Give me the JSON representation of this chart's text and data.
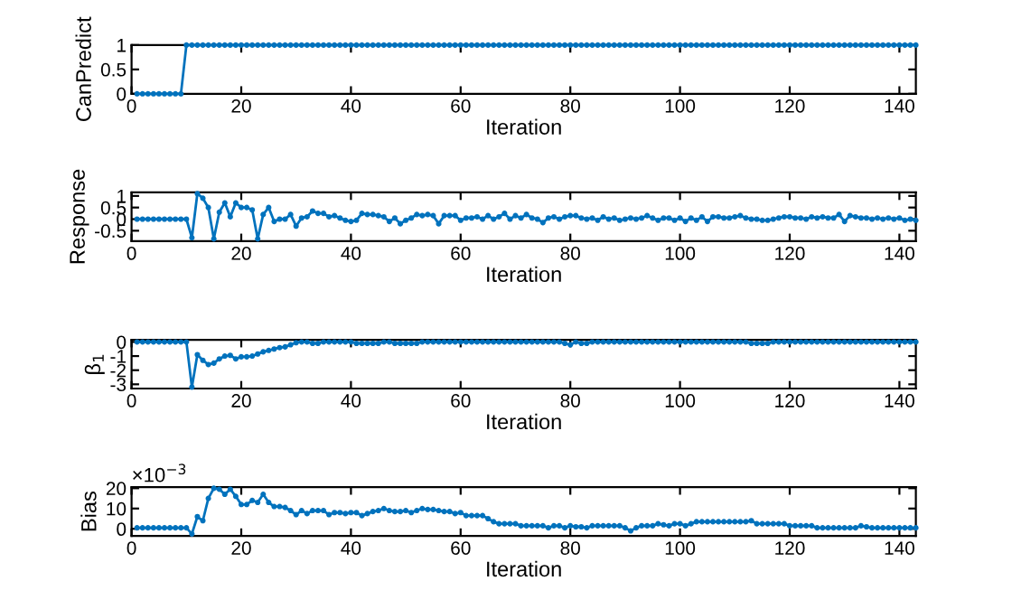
{
  "chart_data": [
    {
      "type": "line",
      "xlabel": "Iteration",
      "ylabel": "CanPredict",
      "xlim": [
        0,
        143
      ],
      "xticks": [
        0,
        20,
        40,
        60,
        80,
        100,
        120,
        140
      ],
      "ylim": [
        0,
        1
      ],
      "yticks": [
        0,
        0.5,
        1
      ],
      "marker": "circle",
      "x": [
        1,
        2,
        3,
        4,
        5,
        6,
        7,
        8,
        9,
        10,
        11,
        12,
        13,
        14,
        15,
        16,
        17,
        18,
        19,
        20,
        21,
        22,
        23,
        24,
        25,
        26,
        27,
        28,
        29,
        30,
        31,
        32,
        33,
        34,
        35,
        36,
        37,
        38,
        39,
        40,
        41,
        42,
        43,
        44,
        45,
        46,
        47,
        48,
        49,
        50,
        51,
        52,
        53,
        54,
        55,
        56,
        57,
        58,
        59,
        60,
        61,
        62,
        63,
        64,
        65,
        66,
        67,
        68,
        69,
        70,
        71,
        72,
        73,
        74,
        75,
        76,
        77,
        78,
        79,
        80,
        81,
        82,
        83,
        84,
        85,
        86,
        87,
        88,
        89,
        90,
        91,
        92,
        93,
        94,
        95,
        96,
        97,
        98,
        99,
        100,
        101,
        102,
        103,
        104,
        105,
        106,
        107,
        108,
        109,
        110,
        111,
        112,
        113,
        114,
        115,
        116,
        117,
        118,
        119,
        120,
        121,
        122,
        123,
        124,
        125,
        126,
        127,
        128,
        129,
        130,
        131,
        132,
        133,
        134,
        135,
        136,
        137,
        138,
        139,
        140,
        141,
        142,
        143
      ],
      "series": [
        {
          "color": "#0072bd",
          "values": [
            0,
            0,
            0,
            0,
            0,
            0,
            0,
            0,
            0,
            1,
            1,
            1,
            1,
            1,
            1,
            1,
            1,
            1,
            1,
            1,
            1,
            1,
            1,
            1,
            1,
            1,
            1,
            1,
            1,
            1,
            1,
            1,
            1,
            1,
            1,
            1,
            1,
            1,
            1,
            1,
            1,
            1,
            1,
            1,
            1,
            1,
            1,
            1,
            1,
            1,
            1,
            1,
            1,
            1,
            1,
            1,
            1,
            1,
            1,
            1,
            1,
            1,
            1,
            1,
            1,
            1,
            1,
            1,
            1,
            1,
            1,
            1,
            1,
            1,
            1,
            1,
            1,
            1,
            1,
            1,
            1,
            1,
            1,
            1,
            1,
            1,
            1,
            1,
            1,
            1,
            1,
            1,
            1,
            1,
            1,
            1,
            1,
            1,
            1,
            1,
            1,
            1,
            1,
            1,
            1,
            1,
            1,
            1,
            1,
            1,
            1,
            1,
            1,
            1,
            1,
            1,
            1,
            1,
            1,
            1,
            1,
            1,
            1,
            1,
            1,
            1,
            1,
            1,
            1,
            1,
            1,
            1,
            1,
            1,
            1,
            1,
            1,
            1,
            1,
            1,
            1,
            1,
            1
          ]
        }
      ]
    },
    {
      "type": "line",
      "xlabel": "Iteration",
      "ylabel": "Response",
      "xlim": [
        0,
        143
      ],
      "xticks": [
        0,
        20,
        40,
        60,
        80,
        100,
        120,
        140
      ],
      "ylim": [
        -0.95,
        1.15
      ],
      "yticks": [
        -0.5,
        0,
        0.5,
        1
      ],
      "marker": "circle",
      "x": [
        1,
        2,
        3,
        4,
        5,
        6,
        7,
        8,
        9,
        10,
        11,
        12,
        13,
        14,
        15,
        16,
        17,
        18,
        19,
        20,
        21,
        22,
        23,
        24,
        25,
        26,
        27,
        28,
        29,
        30,
        31,
        32,
        33,
        34,
        35,
        36,
        37,
        38,
        39,
        40,
        41,
        42,
        43,
        44,
        45,
        46,
        47,
        48,
        49,
        50,
        51,
        52,
        53,
        54,
        55,
        56,
        57,
        58,
        59,
        60,
        61,
        62,
        63,
        64,
        65,
        66,
        67,
        68,
        69,
        70,
        71,
        72,
        73,
        74,
        75,
        76,
        77,
        78,
        79,
        80,
        81,
        82,
        83,
        84,
        85,
        86,
        87,
        88,
        89,
        90,
        91,
        92,
        93,
        94,
        95,
        96,
        97,
        98,
        99,
        100,
        101,
        102,
        103,
        104,
        105,
        106,
        107,
        108,
        109,
        110,
        111,
        112,
        113,
        114,
        115,
        116,
        117,
        118,
        119,
        120,
        121,
        122,
        123,
        124,
        125,
        126,
        127,
        128,
        129,
        130,
        131,
        132,
        133,
        134,
        135,
        136,
        137,
        138,
        139,
        140,
        141,
        142,
        143
      ],
      "series": [
        {
          "color": "#0072bd",
          "values": [
            0,
            0,
            0,
            0,
            0,
            0,
            0,
            0,
            0,
            0,
            -0.8,
            1.1,
            0.9,
            0.5,
            -0.85,
            0.3,
            0.7,
            0.1,
            0.7,
            0.5,
            0.5,
            0.4,
            -0.85,
            0.2,
            0.5,
            -0.1,
            0,
            0,
            0.2,
            -0.3,
            0.05,
            0.1,
            0.35,
            0.25,
            0.25,
            0.1,
            0.15,
            0.05,
            -0.05,
            -0.1,
            -0.05,
            0.25,
            0.2,
            0.2,
            0.15,
            0.1,
            -0.1,
            0.05,
            -0.2,
            -0.05,
            0.05,
            0.2,
            0.15,
            0.2,
            0.15,
            -0.2,
            0.15,
            0.15,
            0.15,
            -0.05,
            0.05,
            0.05,
            0.1,
            0,
            0.15,
            0,
            0.1,
            0.25,
            0,
            0.15,
            0.05,
            0.2,
            0.05,
            0,
            -0.15,
            0.05,
            0.1,
            0,
            0.1,
            0.15,
            0.15,
            0.05,
            0,
            0.05,
            -0.05,
            0.1,
            0,
            0.05,
            -0.05,
            0,
            0.05,
            0,
            0.05,
            0.15,
            0.05,
            -0.05,
            0.05,
            0.05,
            -0.05,
            0.05,
            -0.1,
            0.05,
            -0.05,
            0.1,
            -0.1,
            0.1,
            0.1,
            0.05,
            0.05,
            0.1,
            0.15,
            0.05,
            0,
            0,
            -0.05,
            -0.05,
            0,
            0.05,
            0.1,
            0.1,
            0.05,
            0.05,
            0,
            0.1,
            0.05,
            0.1,
            0.05,
            0.05,
            0.2,
            -0.1,
            0.15,
            0.1,
            0.05,
            0.05,
            0,
            0.05,
            0,
            0.05,
            0,
            0.05,
            -0.05,
            0,
            -0.05
          ]
        }
      ]
    },
    {
      "type": "line",
      "xlabel": "Iteration",
      "ylabel": "β$_{1}$",
      "xlim": [
        0,
        143
      ],
      "xticks": [
        0,
        20,
        40,
        60,
        80,
        100,
        120,
        140
      ],
      "ylim": [
        -3.3,
        0.15
      ],
      "yticks": [
        -3,
        -2,
        -1,
        0
      ],
      "marker": "circle",
      "x": [
        1,
        2,
        3,
        4,
        5,
        6,
        7,
        8,
        9,
        10,
        11,
        12,
        13,
        14,
        15,
        16,
        17,
        18,
        19,
        20,
        21,
        22,
        23,
        24,
        25,
        26,
        27,
        28,
        29,
        30,
        31,
        32,
        33,
        34,
        35,
        36,
        37,
        38,
        39,
        40,
        41,
        42,
        43,
        44,
        45,
        46,
        47,
        48,
        49,
        50,
        51,
        52,
        53,
        54,
        55,
        56,
        57,
        58,
        59,
        60,
        61,
        62,
        63,
        64,
        65,
        66,
        67,
        68,
        69,
        70,
        71,
        72,
        73,
        74,
        75,
        76,
        77,
        78,
        79,
        80,
        81,
        82,
        83,
        84,
        85,
        86,
        87,
        88,
        89,
        90,
        91,
        92,
        93,
        94,
        95,
        96,
        97,
        98,
        99,
        100,
        101,
        102,
        103,
        104,
        105,
        106,
        107,
        108,
        109,
        110,
        111,
        112,
        113,
        114,
        115,
        116,
        117,
        118,
        119,
        120,
        121,
        122,
        123,
        124,
        125,
        126,
        127,
        128,
        129,
        130,
        131,
        132,
        133,
        134,
        135,
        136,
        137,
        138,
        139,
        140,
        141,
        142,
        143
      ],
      "series": [
        {
          "color": "#0072bd",
          "values": [
            0,
            0,
            0,
            0,
            0,
            0,
            0,
            0,
            0,
            0,
            -3.2,
            -0.9,
            -1.3,
            -1.6,
            -1.5,
            -1.2,
            -1,
            -0.95,
            -1.2,
            -1.05,
            -1.05,
            -1,
            -0.85,
            -0.7,
            -0.6,
            -0.5,
            -0.4,
            -0.35,
            -0.2,
            -0.05,
            0,
            0,
            -0.1,
            -0.1,
            0,
            0,
            0,
            0,
            0,
            0,
            -0.1,
            -0.1,
            -0.1,
            -0.1,
            -0.1,
            0,
            0,
            -0.1,
            -0.1,
            -0.1,
            -0.1,
            -0.1,
            0,
            0,
            0,
            0,
            0,
            0,
            0,
            0,
            0,
            0,
            0,
            0,
            0,
            0,
            0,
            0,
            0,
            0,
            0,
            0,
            0,
            0,
            0,
            0,
            0,
            0,
            -0.1,
            -0.2,
            0,
            -0.1,
            -0.1,
            0,
            0,
            0,
            0,
            0,
            0,
            0,
            0,
            0,
            0,
            0,
            0,
            0,
            0,
            0,
            0,
            0,
            0,
            0,
            0,
            0,
            0,
            0,
            0,
            0,
            0,
            0,
            0,
            0,
            -0.1,
            -0.1,
            -0.1,
            -0.1,
            0,
            0,
            0,
            0,
            0,
            0,
            0,
            0,
            0,
            0,
            0,
            0,
            0,
            0,
            0,
            0,
            0,
            0,
            0,
            0,
            0,
            0,
            0,
            0,
            0,
            0,
            0
          ]
        }
      ]
    },
    {
      "type": "line",
      "xlabel": "Iteration",
      "ylabel": "Bias",
      "annotations": [
        "×10$^{−3}$"
      ],
      "xlim": [
        0,
        143
      ],
      "xticks": [
        0,
        20,
        40,
        60,
        80,
        100,
        120,
        140
      ],
      "ylim": [
        -3.5,
        20.5
      ],
      "yticks": [
        0,
        10,
        20
      ],
      "marker": "circle",
      "x": [
        1,
        2,
        3,
        4,
        5,
        6,
        7,
        8,
        9,
        10,
        11,
        12,
        13,
        14,
        15,
        16,
        17,
        18,
        19,
        20,
        21,
        22,
        23,
        24,
        25,
        26,
        27,
        28,
        29,
        30,
        31,
        32,
        33,
        34,
        35,
        36,
        37,
        38,
        39,
        40,
        41,
        42,
        43,
        44,
        45,
        46,
        47,
        48,
        49,
        50,
        51,
        52,
        53,
        54,
        55,
        56,
        57,
        58,
        59,
        60,
        61,
        62,
        63,
        64,
        65,
        66,
        67,
        68,
        69,
        70,
        71,
        72,
        73,
        74,
        75,
        76,
        77,
        78,
        79,
        80,
        81,
        82,
        83,
        84,
        85,
        86,
        87,
        88,
        89,
        90,
        91,
        92,
        93,
        94,
        95,
        96,
        97,
        98,
        99,
        100,
        101,
        102,
        103,
        104,
        105,
        106,
        107,
        108,
        109,
        110,
        111,
        112,
        113,
        114,
        115,
        116,
        117,
        118,
        119,
        120,
        121,
        122,
        123,
        124,
        125,
        126,
        127,
        128,
        129,
        130,
        131,
        132,
        133,
        134,
        135,
        136,
        137,
        138,
        139,
        140,
        141,
        142,
        143
      ],
      "series": [
        {
          "color": "#0072bd",
          "values": [
            0.5,
            0.5,
            0.5,
            0.5,
            0.5,
            0.5,
            0.5,
            0.5,
            0.5,
            0.5,
            -2.5,
            6,
            4,
            15,
            20,
            19.5,
            17,
            19.5,
            16,
            12,
            12,
            14,
            13,
            17,
            13,
            11,
            11,
            10.5,
            9,
            7,
            9,
            7.5,
            9,
            9,
            9,
            7,
            8,
            8,
            7.5,
            8,
            8,
            6.5,
            7.5,
            8.5,
            9,
            10,
            9,
            8.5,
            8.5,
            9,
            8,
            9,
            10,
            9.5,
            9.5,
            9,
            8.5,
            8.5,
            7.5,
            8,
            6.5,
            6.5,
            6.5,
            6.5,
            5,
            3.5,
            2.5,
            2.5,
            2.5,
            2.5,
            1.5,
            1.5,
            1.5,
            1.5,
            1.5,
            0.5,
            1.5,
            1.5,
            0.5,
            1.5,
            1,
            1,
            0.5,
            1.5,
            1.5,
            1.5,
            1.5,
            1.5,
            1.5,
            0.5,
            -1,
            0.5,
            1.5,
            1.5,
            1.5,
            2.5,
            2,
            1.5,
            2.5,
            2.5,
            1.5,
            2.5,
            3.5,
            3.5,
            3.5,
            3.5,
            3.5,
            3.5,
            3.5,
            3.5,
            3.5,
            3.5,
            4,
            2.5,
            2.5,
            2.5,
            2.5,
            2.5,
            2.5,
            1.5,
            1.5,
            1.5,
            1.5,
            1.5,
            0.5,
            0.5,
            0.5,
            0.5,
            0.5,
            0.5,
            0.5,
            0.5,
            1.5,
            1,
            0.5,
            0.5,
            0.5,
            0.5,
            0.5,
            0.5,
            0.5,
            0.5,
            0.5
          ]
        }
      ]
    }
  ]
}
